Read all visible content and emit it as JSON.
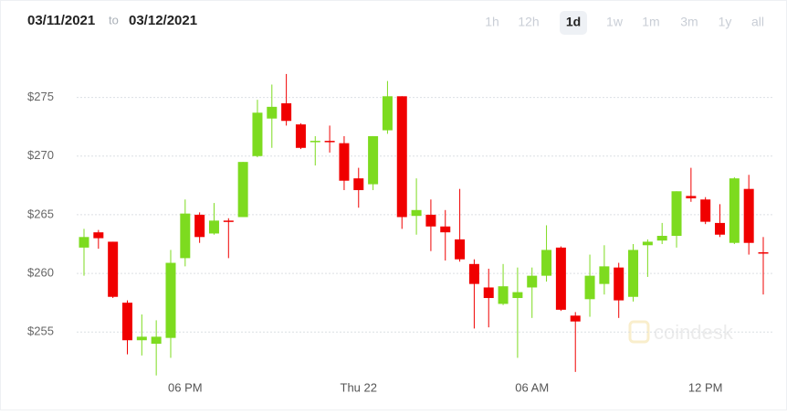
{
  "range": {
    "from": "03/11/2021",
    "to_word": "to",
    "to": "03/12/2021"
  },
  "controls": {
    "buttons": [
      "1h",
      "12h",
      "1d",
      "1w",
      "1m",
      "3m",
      "1y",
      "all"
    ],
    "selected": 2
  },
  "watermark": "coindesk",
  "chart_data": {
    "type": "candlestick",
    "categories": [
      null,
      null,
      null,
      null,
      null,
      null,
      null,
      "06 PM",
      null,
      null,
      null,
      null,
      null,
      null,
      null,
      null,
      null,
      null,
      null,
      "Thu 22",
      null,
      null,
      null,
      null,
      null,
      null,
      null,
      null,
      null,
      null,
      null,
      "06 AM",
      null,
      null,
      null,
      null,
      null,
      null,
      null,
      null,
      null,
      null,
      null,
      "12 PM",
      null,
      null,
      null,
      null
    ],
    "open": [
      262.2,
      263.5,
      262.7,
      257.5,
      254.3,
      254.0,
      254.5,
      261.3,
      265.0,
      263.4,
      264.5,
      264.8,
      270.0,
      273.2,
      274.5,
      272.7,
      271.2,
      271.3,
      271.1,
      268.1,
      267.6,
      272.2,
      275.1,
      264.9,
      265.0,
      264.0,
      262.9,
      260.8,
      258.8,
      257.4,
      257.9,
      258.8,
      259.8,
      262.2,
      256.4,
      257.8,
      259.1,
      260.5,
      258.0,
      262.4,
      262.8,
      263.2,
      266.6,
      266.3,
      264.3,
      262.6,
      267.2,
      261.8
    ],
    "high": [
      263.8,
      263.7,
      262.7,
      257.7,
      256.5,
      256.0,
      262.0,
      266.3,
      265.2,
      266.0,
      264.7,
      269.5,
      274.8,
      276.1,
      277.0,
      272.8,
      271.7,
      272.6,
      271.7,
      269.0,
      271.7,
      276.4,
      275.1,
      268.1,
      266.3,
      265.4,
      267.2,
      261.2,
      260.4,
      260.8,
      260.5,
      260.5,
      264.1,
      262.3,
      256.7,
      261.6,
      262.4,
      260.9,
      262.5,
      262.9,
      264.3,
      267.0,
      269.0,
      266.5,
      265.9,
      268.2,
      268.4,
      263.1
    ],
    "low": [
      259.8,
      262.1,
      257.9,
      253.1,
      253.0,
      251.3,
      252.8,
      260.6,
      262.6,
      263.3,
      261.3,
      264.8,
      269.9,
      270.7,
      272.6,
      270.6,
      269.2,
      270.3,
      267.1,
      265.6,
      267.1,
      271.9,
      263.8,
      263.3,
      261.9,
      261.1,
      261.0,
      255.3,
      255.4,
      257.3,
      252.8,
      256.2,
      259.3,
      256.8,
      251.6,
      256.3,
      258.2,
      256.2,
      257.6,
      259.7,
      262.5,
      262.2,
      266.1,
      264.2,
      263.1,
      262.5,
      261.6,
      258.2
    ],
    "close": [
      263.1,
      263.0,
      258.0,
      254.3,
      254.6,
      254.6,
      260.9,
      265.1,
      263.1,
      264.5,
      264.4,
      269.5,
      273.7,
      274.2,
      273.0,
      270.7,
      271.3,
      271.2,
      267.9,
      267.1,
      271.7,
      275.1,
      264.8,
      265.4,
      264.0,
      263.5,
      261.2,
      259.1,
      257.9,
      258.9,
      258.4,
      259.8,
      262.0,
      256.9,
      255.9,
      259.8,
      260.6,
      257.7,
      262.0,
      262.7,
      263.2,
      267.0,
      266.4,
      264.4,
      263.3,
      268.1,
      262.6,
      261.7
    ],
    "up_color": "#7ddb1f",
    "down_color": "#f00000",
    "ylim": [
      251.2,
      279.8
    ],
    "yticks": [
      {
        "value": 255,
        "label": "$255"
      },
      {
        "value": 260,
        "label": "$260"
      },
      {
        "value": 265,
        "label": "$265"
      },
      {
        "value": 270,
        "label": "$270"
      },
      {
        "value": 275,
        "label": "$275"
      }
    ],
    "grid": true
  }
}
